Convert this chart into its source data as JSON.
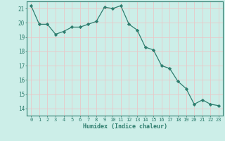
{
  "x": [
    0,
    1,
    2,
    3,
    4,
    5,
    6,
    7,
    8,
    9,
    10,
    11,
    12,
    13,
    14,
    15,
    16,
    17,
    18,
    19,
    20,
    21,
    22,
    23
  ],
  "y": [
    21.2,
    19.9,
    19.9,
    19.2,
    19.4,
    19.7,
    19.7,
    19.9,
    20.1,
    21.1,
    21.0,
    21.2,
    19.9,
    19.5,
    18.3,
    18.1,
    17.0,
    16.8,
    15.9,
    15.4,
    14.3,
    14.6,
    14.3,
    14.2
  ],
  "xlabel": "Humidex (Indice chaleur)",
  "ylabel": "",
  "xlim": [
    -0.5,
    23.5
  ],
  "ylim": [
    13.5,
    21.5
  ],
  "yticks": [
    14,
    15,
    16,
    17,
    18,
    19,
    20,
    21
  ],
  "xticks": [
    0,
    1,
    2,
    3,
    4,
    5,
    6,
    7,
    8,
    9,
    10,
    11,
    12,
    13,
    14,
    15,
    16,
    17,
    18,
    19,
    20,
    21,
    22,
    23
  ],
  "line_color": "#2e7d6e",
  "marker_color": "#2e7d6e",
  "bg_color": "#cceee8",
  "grid_color": "#e8c8c8",
  "tick_color": "#2e7d6e",
  "label_color": "#2e7d6e",
  "spine_color": "#2e7d6e"
}
